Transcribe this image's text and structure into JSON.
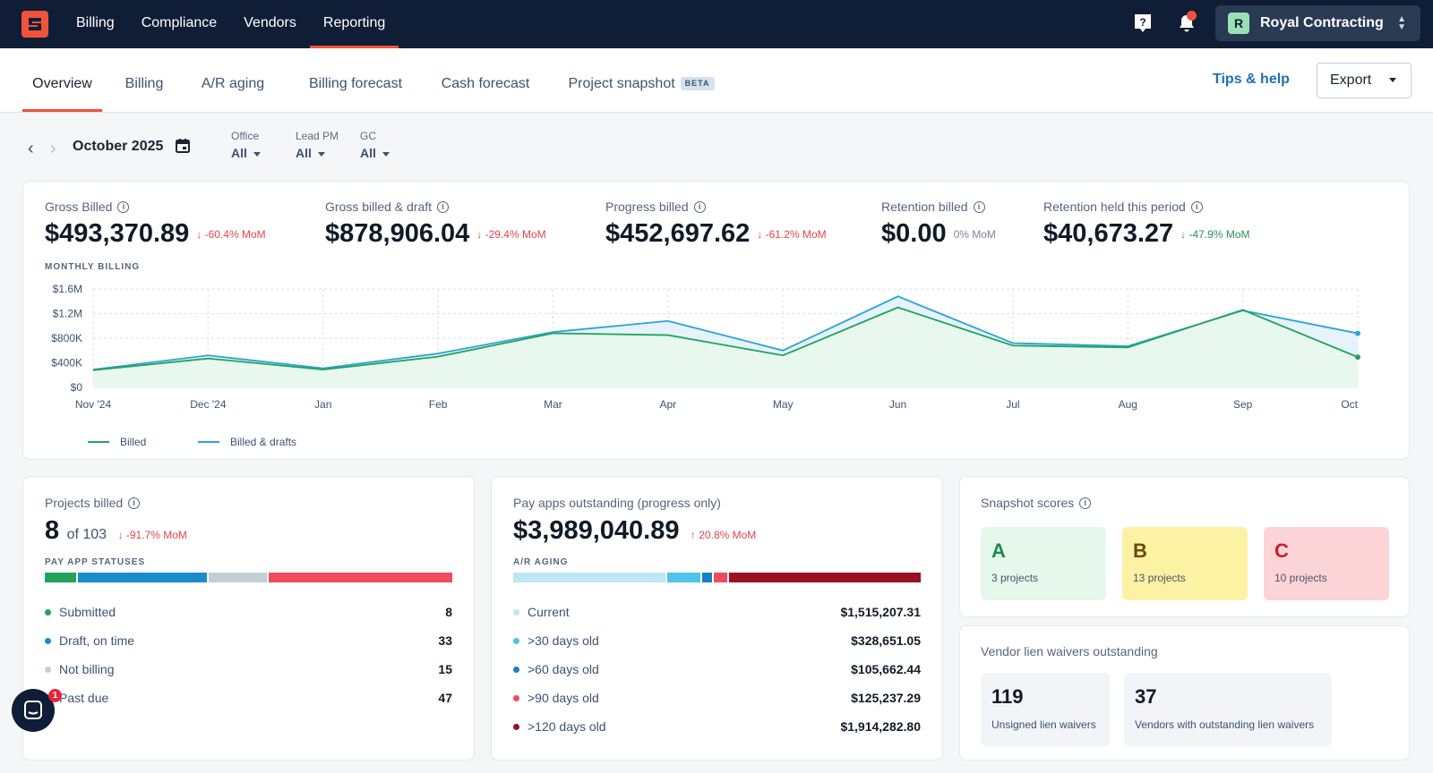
{
  "nav": {
    "items": [
      "Billing",
      "Compliance",
      "Vendors",
      "Reporting"
    ],
    "active": "Reporting"
  },
  "company": {
    "initial": "R",
    "name": "Royal Contracting"
  },
  "tabs": [
    "Overview",
    "Billing",
    "A/R aging",
    "Billing forecast",
    "Cash forecast",
    "Project snapshot"
  ],
  "beta_label": "BETA",
  "tips_label": "Tips & help",
  "export_label": "Export",
  "period": "October 2025",
  "filters": [
    {
      "label": "Office",
      "value": "All"
    },
    {
      "label": "Lead PM",
      "value": "All"
    },
    {
      "label": "GC",
      "value": "All"
    }
  ],
  "metrics": [
    {
      "label": "Gross Billed",
      "value": "$493,370.89",
      "delta": "↓ -60.4% MoM"
    },
    {
      "label": "Gross billed & draft",
      "value": "$878,906.04",
      "delta": "↓ -29.4% MoM"
    },
    {
      "label": "Progress billed",
      "value": "$452,697.62",
      "delta": "↓ -61.2% MoM"
    },
    {
      "label": "Retention billed",
      "value": "$0.00",
      "delta": "0% MoM"
    },
    {
      "label": "Retention held this period",
      "value": "$40,673.27",
      "delta": "↓ -47.9% MoM"
    }
  ],
  "monthly_caption": "MONTHLY BILLING",
  "chart_data": {
    "type": "line",
    "title": "MONTHLY BILLING",
    "categories": [
      "Nov '24",
      "Dec '24",
      "Jan",
      "Feb",
      "Mar",
      "Apr",
      "May",
      "Jun",
      "Jul",
      "Aug",
      "Sep",
      "Oct"
    ],
    "ylim": [
      0,
      1600000
    ],
    "yticks": [
      "$0",
      "$400K",
      "$800K",
      "$1.2M",
      "$1.6M"
    ],
    "ytick_values": [
      0,
      400000,
      800000,
      1200000,
      1600000
    ],
    "series": [
      {
        "name": "Billed",
        "color": "#21a35c",
        "values": [
          280000,
          470000,
          290000,
          500000,
          880000,
          850000,
          520000,
          1300000,
          680000,
          650000,
          1260000,
          493000
        ]
      },
      {
        "name": "Billed & drafts",
        "color": "#2aa4d8",
        "values": [
          290000,
          520000,
          310000,
          550000,
          900000,
          1080000,
          600000,
          1480000,
          720000,
          670000,
          1250000,
          879000
        ]
      }
    ]
  },
  "projects": {
    "label": "Projects billed",
    "value": "8",
    "of_text": "of 103",
    "delta": "↓ -91.7% MoM",
    "caption": "PAY APP STATUSES",
    "statuses": [
      {
        "label": "Submitted",
        "count": "8",
        "n": 8,
        "color": "#21a35c"
      },
      {
        "label": "Draft, on time",
        "count": "33",
        "n": 33,
        "color": "#1a8ccd"
      },
      {
        "label": "Not billing",
        "count": "15",
        "n": 15,
        "color": "#c3cfd6"
      },
      {
        "label": "Past due",
        "count": "47",
        "n": 47,
        "color": "#ef4c5e"
      }
    ]
  },
  "payapps": {
    "label": "Pay apps outstanding (progress only)",
    "value": "$3,989,040.89",
    "delta": "↑ 20.8% MoM",
    "caption": "A/R AGING",
    "aging": [
      {
        "label": "Current",
        "amount": "$1,515,207.31",
        "n": 1515207.31,
        "color": "#bde7f3"
      },
      {
        "label": ">30 days old",
        "amount": "$328,651.05",
        "n": 328651.05,
        "color": "#4fc3ec"
      },
      {
        "label": ">60 days old",
        "amount": "$105,662.44",
        "n": 105662.44,
        "color": "#1a7fc4"
      },
      {
        "label": ">90 days old",
        "amount": "$125,237.29",
        "n": 125237.29,
        "color": "#ef4c5e"
      },
      {
        "label": ">120 days old",
        "amount": "$1,914,282.80",
        "n": 1914282.8,
        "color": "#9b1022"
      }
    ]
  },
  "snapshot": {
    "label": "Snapshot scores",
    "scores": [
      {
        "letter": "A",
        "text": "3 projects",
        "bg": "#e6f7ec",
        "fg": "#1f8a4c"
      },
      {
        "letter": "B",
        "text": "13 projects",
        "bg": "#fdf1a4",
        "fg": "#6a4a0a"
      },
      {
        "letter": "C",
        "text": "10 projects",
        "bg": "#fcd3d6",
        "fg": "#c8202e"
      }
    ]
  },
  "lien": {
    "label": "Vendor lien waivers outstanding",
    "items": [
      {
        "num": "119",
        "text": "Unsigned lien waivers"
      },
      {
        "num": "37",
        "text": "Vendors with outstanding lien waivers"
      }
    ]
  },
  "chat_badge": "1"
}
